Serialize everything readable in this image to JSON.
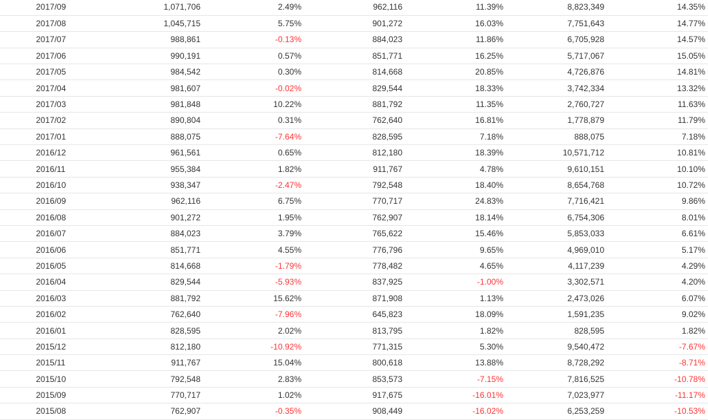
{
  "colors": {
    "text": "#333333",
    "negative": "#ff3333",
    "row_border": "#e6e6e6",
    "background": "#ffffff"
  },
  "rows": [
    [
      "2017/09",
      "1,071,706",
      "2.49%",
      "962,116",
      "11.39%",
      "8,823,349",
      "14.35%"
    ],
    [
      "2017/08",
      "1,045,715",
      "5.75%",
      "901,272",
      "16.03%",
      "7,751,643",
      "14.77%"
    ],
    [
      "2017/07",
      "988,861",
      "-0.13%",
      "884,023",
      "11.86%",
      "6,705,928",
      "14.57%"
    ],
    [
      "2017/06",
      "990,191",
      "0.57%",
      "851,771",
      "16.25%",
      "5,717,067",
      "15.05%"
    ],
    [
      "2017/05",
      "984,542",
      "0.30%",
      "814,668",
      "20.85%",
      "4,726,876",
      "14.81%"
    ],
    [
      "2017/04",
      "981,607",
      "-0.02%",
      "829,544",
      "18.33%",
      "3,742,334",
      "13.32%"
    ],
    [
      "2017/03",
      "981,848",
      "10.22%",
      "881,792",
      "11.35%",
      "2,760,727",
      "11.63%"
    ],
    [
      "2017/02",
      "890,804",
      "0.31%",
      "762,640",
      "16.81%",
      "1,778,879",
      "11.79%"
    ],
    [
      "2017/01",
      "888,075",
      "-7.64%",
      "828,595",
      "7.18%",
      "888,075",
      "7.18%"
    ],
    [
      "2016/12",
      "961,561",
      "0.65%",
      "812,180",
      "18.39%",
      "10,571,712",
      "10.81%"
    ],
    [
      "2016/11",
      "955,384",
      "1.82%",
      "911,767",
      "4.78%",
      "9,610,151",
      "10.10%"
    ],
    [
      "2016/10",
      "938,347",
      "-2.47%",
      "792,548",
      "18.40%",
      "8,654,768",
      "10.72%"
    ],
    [
      "2016/09",
      "962,116",
      "6.75%",
      "770,717",
      "24.83%",
      "7,716,421",
      "9.86%"
    ],
    [
      "2016/08",
      "901,272",
      "1.95%",
      "762,907",
      "18.14%",
      "6,754,306",
      "8.01%"
    ],
    [
      "2016/07",
      "884,023",
      "3.79%",
      "765,622",
      "15.46%",
      "5,853,033",
      "6.61%"
    ],
    [
      "2016/06",
      "851,771",
      "4.55%",
      "776,796",
      "9.65%",
      "4,969,010",
      "5.17%"
    ],
    [
      "2016/05",
      "814,668",
      "-1.79%",
      "778,482",
      "4.65%",
      "4,117,239",
      "4.29%"
    ],
    [
      "2016/04",
      "829,544",
      "-5.93%",
      "837,925",
      "-1.00%",
      "3,302,571",
      "4.20%"
    ],
    [
      "2016/03",
      "881,792",
      "15.62%",
      "871,908",
      "1.13%",
      "2,473,026",
      "6.07%"
    ],
    [
      "2016/02",
      "762,640",
      "-7.96%",
      "645,823",
      "18.09%",
      "1,591,235",
      "9.02%"
    ],
    [
      "2016/01",
      "828,595",
      "2.02%",
      "813,795",
      "1.82%",
      "828,595",
      "1.82%"
    ],
    [
      "2015/12",
      "812,180",
      "-10.92%",
      "771,315",
      "5.30%",
      "9,540,472",
      "-7.67%"
    ],
    [
      "2015/11",
      "911,767",
      "15.04%",
      "800,618",
      "13.88%",
      "8,728,292",
      "-8.71%"
    ],
    [
      "2015/10",
      "792,548",
      "2.83%",
      "853,573",
      "-7.15%",
      "7,816,525",
      "-10.78%"
    ],
    [
      "2015/09",
      "770,717",
      "1.02%",
      "917,675",
      "-16.01%",
      "7,023,977",
      "-11.17%"
    ],
    [
      "2015/08",
      "762,907",
      "-0.35%",
      "908,449",
      "-16.02%",
      "6,253,259",
      "-10.53%"
    ]
  ]
}
